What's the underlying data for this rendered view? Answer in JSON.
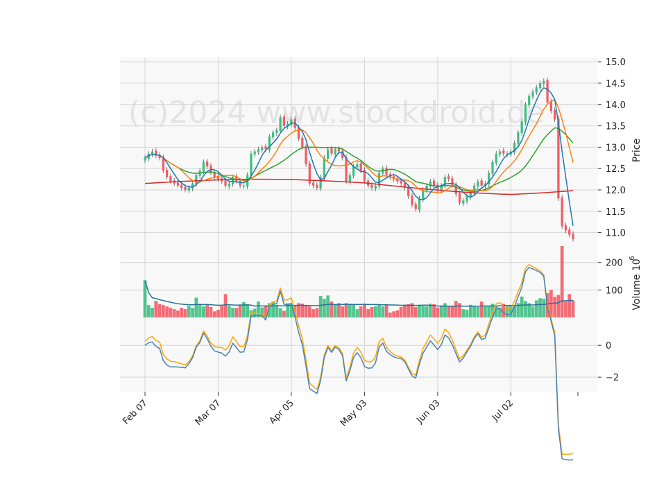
{
  "watermark": "(c)2024 www.stockdroid.de",
  "colors": {
    "up": "#3dbf82",
    "down": "#f25c66",
    "ma_blue": "#1f77b4",
    "ma_orange": "#ff7f0e",
    "ma_green": "#2ca02c",
    "ma_red": "#d62728",
    "vol_avg": "#2a6f97",
    "osc_blue": "#4682b4",
    "osc_orange": "#ffa500",
    "panel_bg": "#f8f8f8",
    "grid": "#d4d4d4"
  },
  "chart_data": {
    "type": "candlestick",
    "x_tick_labels": [
      "Feb 07",
      "Mar 07",
      "Apr 05",
      "May 03",
      "Jun 03",
      "Jul 02"
    ],
    "x_tick_index": [
      0,
      20,
      40,
      60,
      80,
      100
    ],
    "price_panel": {
      "ylabel": "Price",
      "ylim": [
        10.75,
        15.1
      ],
      "yticks": [
        11.0,
        11.5,
        12.0,
        12.5,
        13.0,
        13.5,
        14.0,
        14.5,
        15.0
      ],
      "ytick_labels": [
        "11.0",
        "11.5",
        "12.0",
        "12.5",
        "13.0",
        "13.5",
        "14.0",
        "14.5",
        "15.0"
      ],
      "grid": true
    },
    "volume_panel": {
      "ylabel": "Volume  10",
      "ylabel_exp": "6",
      "ylim": [
        0,
        270
      ],
      "yticks": [
        100,
        200
      ],
      "ytick_labels": [
        "100",
        "200"
      ],
      "grid": true
    },
    "oscillator_panel": {
      "ylim": [
        -2.95,
        1.75
      ],
      "yticks": [
        -2,
        0
      ],
      "ytick_labels": [
        "−2",
        "0"
      ],
      "grid": true
    },
    "close": [
      12.75,
      12.85,
      12.9,
      12.8,
      12.75,
      12.45,
      12.3,
      12.2,
      12.15,
      12.1,
      12.05,
      12.0,
      12.05,
      12.15,
      12.35,
      12.45,
      12.65,
      12.55,
      12.4,
      12.3,
      12.25,
      12.2,
      12.1,
      12.15,
      12.3,
      12.2,
      12.1,
      12.1,
      12.35,
      12.85,
      12.9,
      12.95,
      13.0,
      12.95,
      13.25,
      13.35,
      13.4,
      13.7,
      13.5,
      13.55,
      13.65,
      13.45,
      13.2,
      13.0,
      12.6,
      12.15,
      12.1,
      12.05,
      12.3,
      12.75,
      12.95,
      12.85,
      12.95,
      12.9,
      12.75,
      12.2,
      12.35,
      12.55,
      12.6,
      12.45,
      12.2,
      12.1,
      12.05,
      12.1,
      12.4,
      12.5,
      12.35,
      12.3,
      12.25,
      12.2,
      12.15,
      12.05,
      11.85,
      11.65,
      11.55,
      11.8,
      12.0,
      12.1,
      12.2,
      12.1,
      12.0,
      12.1,
      12.3,
      12.25,
      12.1,
      11.9,
      11.7,
      11.75,
      11.85,
      11.95,
      12.1,
      12.2,
      12.1,
      12.15,
      12.4,
      12.65,
      12.85,
      12.9,
      12.85,
      12.85,
      12.9,
      13.1,
      13.35,
      13.6,
      14.0,
      14.2,
      14.3,
      14.4,
      14.5,
      14.55,
      14.05,
      13.85,
      13.65,
      11.8,
      11.15,
      11.05,
      10.95,
      10.85
    ],
    "volume": [
      135,
      45,
      35,
      60,
      48,
      45,
      40,
      35,
      30,
      25,
      35,
      30,
      42,
      35,
      72,
      48,
      40,
      45,
      38,
      22,
      28,
      42,
      85,
      42,
      35,
      34,
      46,
      56,
      48,
      26,
      32,
      58,
      36,
      44,
      52,
      58,
      46,
      34,
      24,
      52,
      48,
      44,
      52,
      50,
      45,
      40,
      30,
      34,
      78,
      68,
      80,
      58,
      48,
      52,
      40,
      52,
      48,
      46,
      30,
      40,
      48,
      30,
      38,
      40,
      46,
      40,
      46,
      18,
      22,
      26,
      38,
      46,
      48,
      52,
      38,
      46,
      42,
      40,
      50,
      48,
      36,
      44,
      52,
      40,
      42,
      60,
      52,
      30,
      28,
      46,
      40,
      38,
      58,
      40,
      42,
      50,
      40,
      36,
      50,
      40,
      42,
      40,
      52,
      76,
      60,
      52,
      40,
      62,
      70,
      68,
      88,
      100,
      75,
      82,
      260,
      58,
      85,
      62
    ]
  }
}
